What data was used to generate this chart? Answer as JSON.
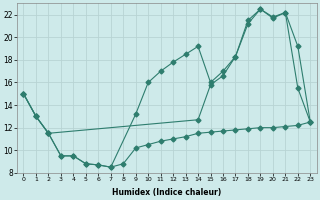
{
  "xlabel": "Humidex (Indice chaleur)",
  "bg_color": "#ceeaea",
  "grid_color": "#b8d4d4",
  "line_color": "#2e7d6e",
  "xlim": [
    -0.5,
    23.5
  ],
  "ylim": [
    8,
    23
  ],
  "xticks": [
    0,
    1,
    2,
    3,
    4,
    5,
    6,
    7,
    8,
    9,
    10,
    11,
    12,
    13,
    14,
    15,
    16,
    17,
    18,
    19,
    20,
    21,
    22,
    23
  ],
  "yticks": [
    8,
    10,
    12,
    14,
    16,
    18,
    20,
    22
  ],
  "line1_x": [
    0,
    1,
    2,
    3,
    4,
    5,
    6,
    7,
    9,
    10,
    11,
    12,
    13,
    14,
    15,
    16,
    17,
    18,
    19,
    20,
    21,
    22,
    23
  ],
  "line1_y": [
    15,
    13,
    11.5,
    9.5,
    9.5,
    8.8,
    8.7,
    8.5,
    13.2,
    16,
    17,
    17.8,
    18.5,
    19.2,
    16,
    17,
    18.3,
    21.5,
    22.5,
    21.7,
    22.2,
    15.5,
    12.5
  ],
  "line2_x": [
    0,
    1,
    2,
    14,
    15,
    16,
    17,
    18,
    19,
    20,
    21,
    22,
    23
  ],
  "line2_y": [
    15,
    13,
    11.5,
    12.7,
    15.8,
    16.6,
    18.3,
    21.2,
    22.5,
    21.8,
    22.2,
    19.2,
    12.5
  ],
  "line3_x": [
    0,
    1,
    2,
    3,
    4,
    5,
    6,
    7,
    8,
    9,
    10,
    11,
    12,
    13,
    14,
    15,
    16,
    17,
    18,
    19,
    20,
    21,
    22,
    23
  ],
  "line3_y": [
    15,
    13,
    11.5,
    9.5,
    9.5,
    8.8,
    8.7,
    8.5,
    8.8,
    10.2,
    10.5,
    10.8,
    11.0,
    11.2,
    11.5,
    11.6,
    11.7,
    11.8,
    11.9,
    12.0,
    12.0,
    12.1,
    12.2,
    12.5
  ]
}
